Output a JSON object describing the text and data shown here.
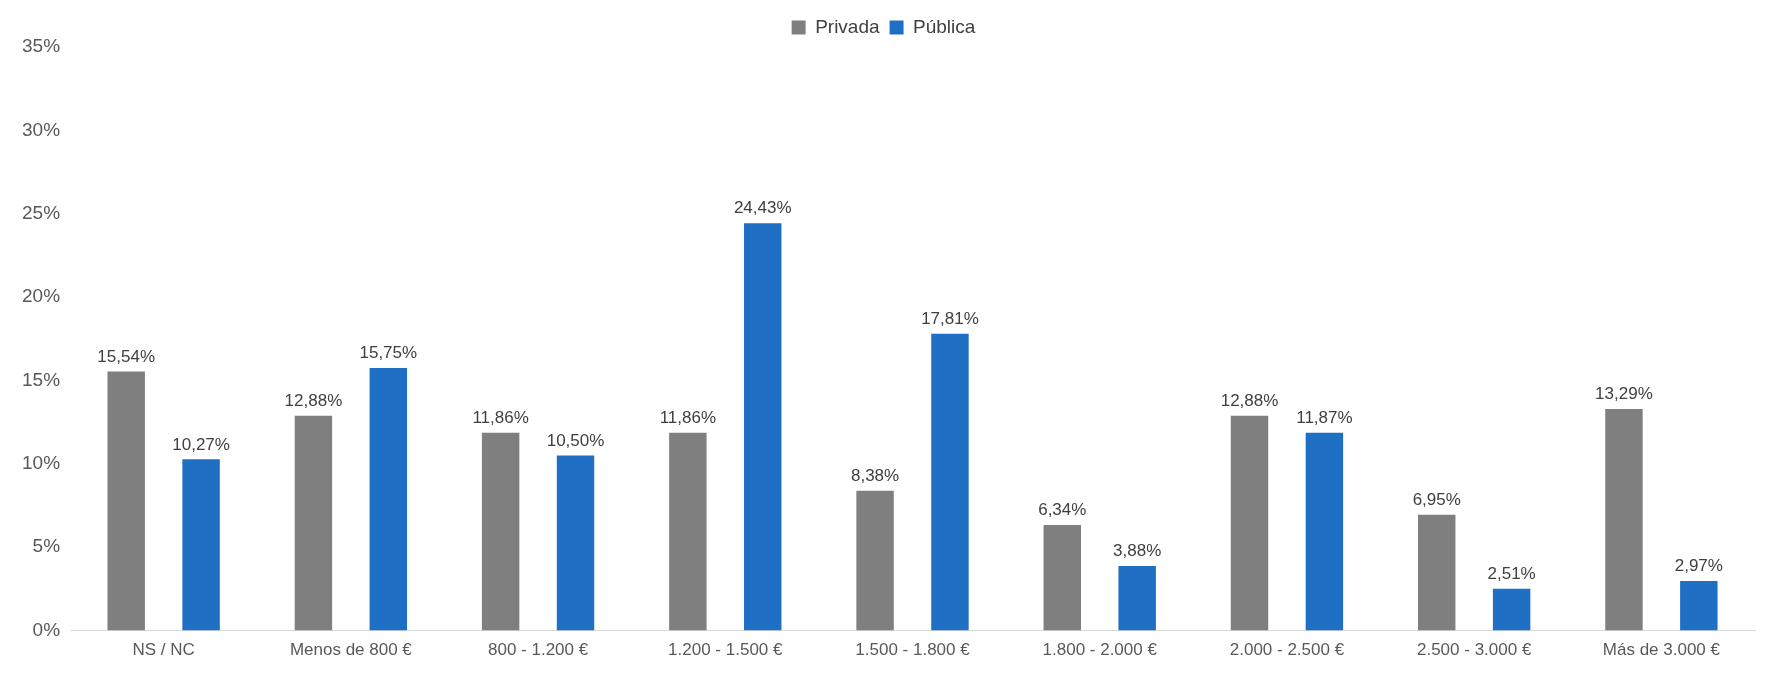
{
  "chart_data": {
    "type": "bar",
    "categories": [
      "NS / NC",
      "Menos de 800 €",
      "800 - 1.200 €",
      "1.200 - 1.500 €",
      "1.500 - 1.800 €",
      "1.800 - 2.000 €",
      "2.000 - 2.500 €",
      "2.500 - 3.000 €",
      "Más de 3.000 €"
    ],
    "series": [
      {
        "name": "Privada",
        "color": "#7f7f7f",
        "values": [
          15.54,
          12.88,
          11.86,
          11.86,
          8.38,
          6.34,
          12.88,
          6.95,
          13.29
        ],
        "value_labels": [
          "15,54%",
          "12,88%",
          "11,86%",
          "11,86%",
          "8,38%",
          "6,34%",
          "12,88%",
          "6,95%",
          "13,29%"
        ]
      },
      {
        "name": "Pública",
        "color": "#1f6fc5",
        "values": [
          10.27,
          15.75,
          10.5,
          24.43,
          17.81,
          3.88,
          11.87,
          2.51,
          2.97
        ],
        "value_labels": [
          "10,27%",
          "15,75%",
          "10,50%",
          "24,43%",
          "17,81%",
          "3,88%",
          "11,87%",
          "2,51%",
          "2,97%"
        ]
      }
    ],
    "ylim": [
      0,
      35
    ],
    "yticks": [
      {
        "value": 0,
        "label": "0%"
      },
      {
        "value": 5,
        "label": "5%"
      },
      {
        "value": 10,
        "label": "10%"
      },
      {
        "value": 15,
        "label": "15%"
      },
      {
        "value": 20,
        "label": "20%"
      },
      {
        "value": 25,
        "label": "25%"
      },
      {
        "value": 30,
        "label": "30%"
      },
      {
        "value": 35,
        "label": "35%"
      }
    ],
    "grid": false,
    "legend": "top"
  }
}
